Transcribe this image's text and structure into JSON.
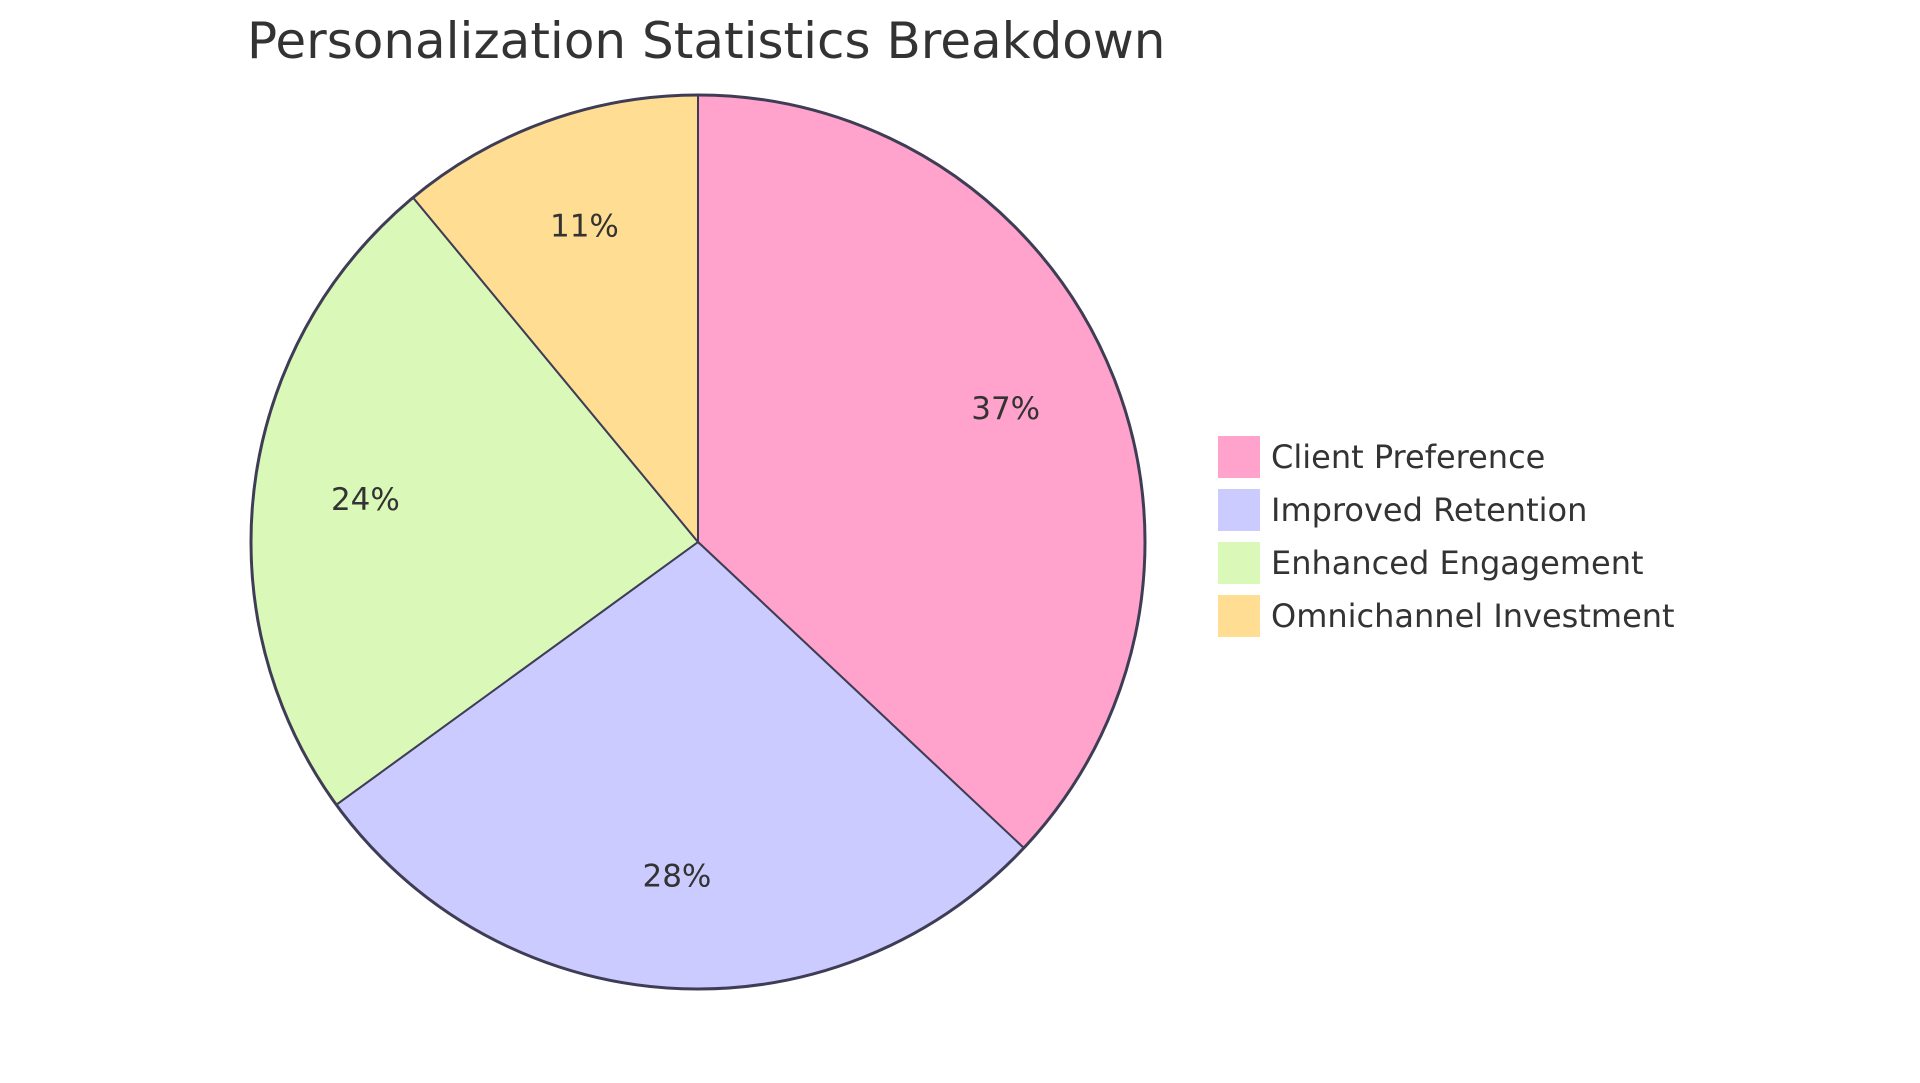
{
  "chart_data": {
    "type": "pie",
    "title": "Personalization Statistics Breakdown",
    "slices": [
      {
        "label": "Client Preference",
        "value": 37,
        "display": "37%",
        "color": "#FFA3CC"
      },
      {
        "label": "Improved Retention",
        "value": 28,
        "display": "28%",
        "color": "#CBCBFF"
      },
      {
        "label": "Enhanced Engagement",
        "value": 24,
        "display": "24%",
        "color": "#DAF9B9"
      },
      {
        "label": "Omnichannel Investment",
        "value": 11,
        "display": "11%",
        "color": "#FFDE94"
      }
    ],
    "legend_position": "right",
    "stroke_color": "#3F3D56"
  }
}
